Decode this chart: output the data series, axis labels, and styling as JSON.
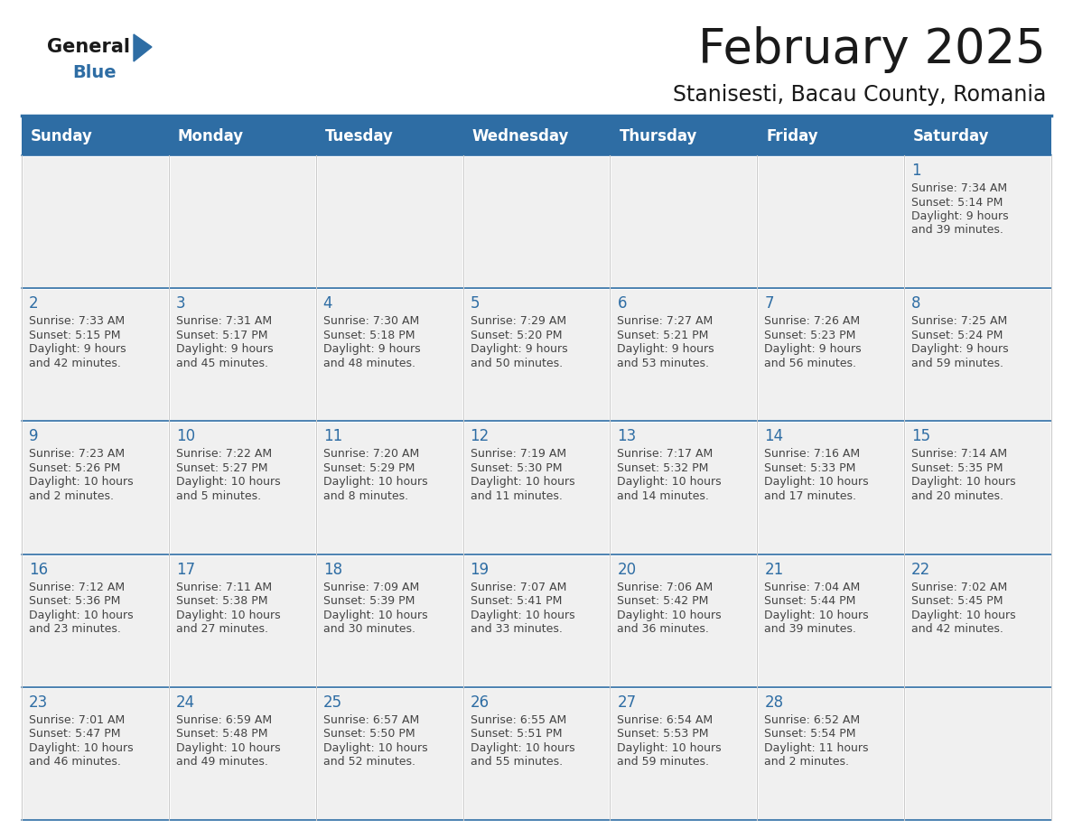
{
  "title": "February 2025",
  "subtitle": "Stanisesti, Bacau County, Romania",
  "header_bg": "#2E6DA4",
  "header_text_color": "#FFFFFF",
  "cell_bg_light": "#F0F0F0",
  "day_number_color": "#2E6DA4",
  "text_color": "#444444",
  "border_color": "#2E6DA4",
  "days_of_week": [
    "Sunday",
    "Monday",
    "Tuesday",
    "Wednesday",
    "Thursday",
    "Friday",
    "Saturday"
  ],
  "weeks": [
    [
      {
        "day": null,
        "sunrise": null,
        "sunset": null,
        "daylight": null
      },
      {
        "day": null,
        "sunrise": null,
        "sunset": null,
        "daylight": null
      },
      {
        "day": null,
        "sunrise": null,
        "sunset": null,
        "daylight": null
      },
      {
        "day": null,
        "sunrise": null,
        "sunset": null,
        "daylight": null
      },
      {
        "day": null,
        "sunrise": null,
        "sunset": null,
        "daylight": null
      },
      {
        "day": null,
        "sunrise": null,
        "sunset": null,
        "daylight": null
      },
      {
        "day": 1,
        "sunrise": "7:34 AM",
        "sunset": "5:14 PM",
        "daylight": "9 hours\nand 39 minutes."
      }
    ],
    [
      {
        "day": 2,
        "sunrise": "7:33 AM",
        "sunset": "5:15 PM",
        "daylight": "9 hours\nand 42 minutes."
      },
      {
        "day": 3,
        "sunrise": "7:31 AM",
        "sunset": "5:17 PM",
        "daylight": "9 hours\nand 45 minutes."
      },
      {
        "day": 4,
        "sunrise": "7:30 AM",
        "sunset": "5:18 PM",
        "daylight": "9 hours\nand 48 minutes."
      },
      {
        "day": 5,
        "sunrise": "7:29 AM",
        "sunset": "5:20 PM",
        "daylight": "9 hours\nand 50 minutes."
      },
      {
        "day": 6,
        "sunrise": "7:27 AM",
        "sunset": "5:21 PM",
        "daylight": "9 hours\nand 53 minutes."
      },
      {
        "day": 7,
        "sunrise": "7:26 AM",
        "sunset": "5:23 PM",
        "daylight": "9 hours\nand 56 minutes."
      },
      {
        "day": 8,
        "sunrise": "7:25 AM",
        "sunset": "5:24 PM",
        "daylight": "9 hours\nand 59 minutes."
      }
    ],
    [
      {
        "day": 9,
        "sunrise": "7:23 AM",
        "sunset": "5:26 PM",
        "daylight": "10 hours\nand 2 minutes."
      },
      {
        "day": 10,
        "sunrise": "7:22 AM",
        "sunset": "5:27 PM",
        "daylight": "10 hours\nand 5 minutes."
      },
      {
        "day": 11,
        "sunrise": "7:20 AM",
        "sunset": "5:29 PM",
        "daylight": "10 hours\nand 8 minutes."
      },
      {
        "day": 12,
        "sunrise": "7:19 AM",
        "sunset": "5:30 PM",
        "daylight": "10 hours\nand 11 minutes."
      },
      {
        "day": 13,
        "sunrise": "7:17 AM",
        "sunset": "5:32 PM",
        "daylight": "10 hours\nand 14 minutes."
      },
      {
        "day": 14,
        "sunrise": "7:16 AM",
        "sunset": "5:33 PM",
        "daylight": "10 hours\nand 17 minutes."
      },
      {
        "day": 15,
        "sunrise": "7:14 AM",
        "sunset": "5:35 PM",
        "daylight": "10 hours\nand 20 minutes."
      }
    ],
    [
      {
        "day": 16,
        "sunrise": "7:12 AM",
        "sunset": "5:36 PM",
        "daylight": "10 hours\nand 23 minutes."
      },
      {
        "day": 17,
        "sunrise": "7:11 AM",
        "sunset": "5:38 PM",
        "daylight": "10 hours\nand 27 minutes."
      },
      {
        "day": 18,
        "sunrise": "7:09 AM",
        "sunset": "5:39 PM",
        "daylight": "10 hours\nand 30 minutes."
      },
      {
        "day": 19,
        "sunrise": "7:07 AM",
        "sunset": "5:41 PM",
        "daylight": "10 hours\nand 33 minutes."
      },
      {
        "day": 20,
        "sunrise": "7:06 AM",
        "sunset": "5:42 PM",
        "daylight": "10 hours\nand 36 minutes."
      },
      {
        "day": 21,
        "sunrise": "7:04 AM",
        "sunset": "5:44 PM",
        "daylight": "10 hours\nand 39 minutes."
      },
      {
        "day": 22,
        "sunrise": "7:02 AM",
        "sunset": "5:45 PM",
        "daylight": "10 hours\nand 42 minutes."
      }
    ],
    [
      {
        "day": 23,
        "sunrise": "7:01 AM",
        "sunset": "5:47 PM",
        "daylight": "10 hours\nand 46 minutes."
      },
      {
        "day": 24,
        "sunrise": "6:59 AM",
        "sunset": "5:48 PM",
        "daylight": "10 hours\nand 49 minutes."
      },
      {
        "day": 25,
        "sunrise": "6:57 AM",
        "sunset": "5:50 PM",
        "daylight": "10 hours\nand 52 minutes."
      },
      {
        "day": 26,
        "sunrise": "6:55 AM",
        "sunset": "5:51 PM",
        "daylight": "10 hours\nand 55 minutes."
      },
      {
        "day": 27,
        "sunrise": "6:54 AM",
        "sunset": "5:53 PM",
        "daylight": "10 hours\nand 59 minutes."
      },
      {
        "day": 28,
        "sunrise": "6:52 AM",
        "sunset": "5:54 PM",
        "daylight": "11 hours\nand 2 minutes."
      },
      {
        "day": null,
        "sunrise": null,
        "sunset": null,
        "daylight": null
      }
    ]
  ]
}
